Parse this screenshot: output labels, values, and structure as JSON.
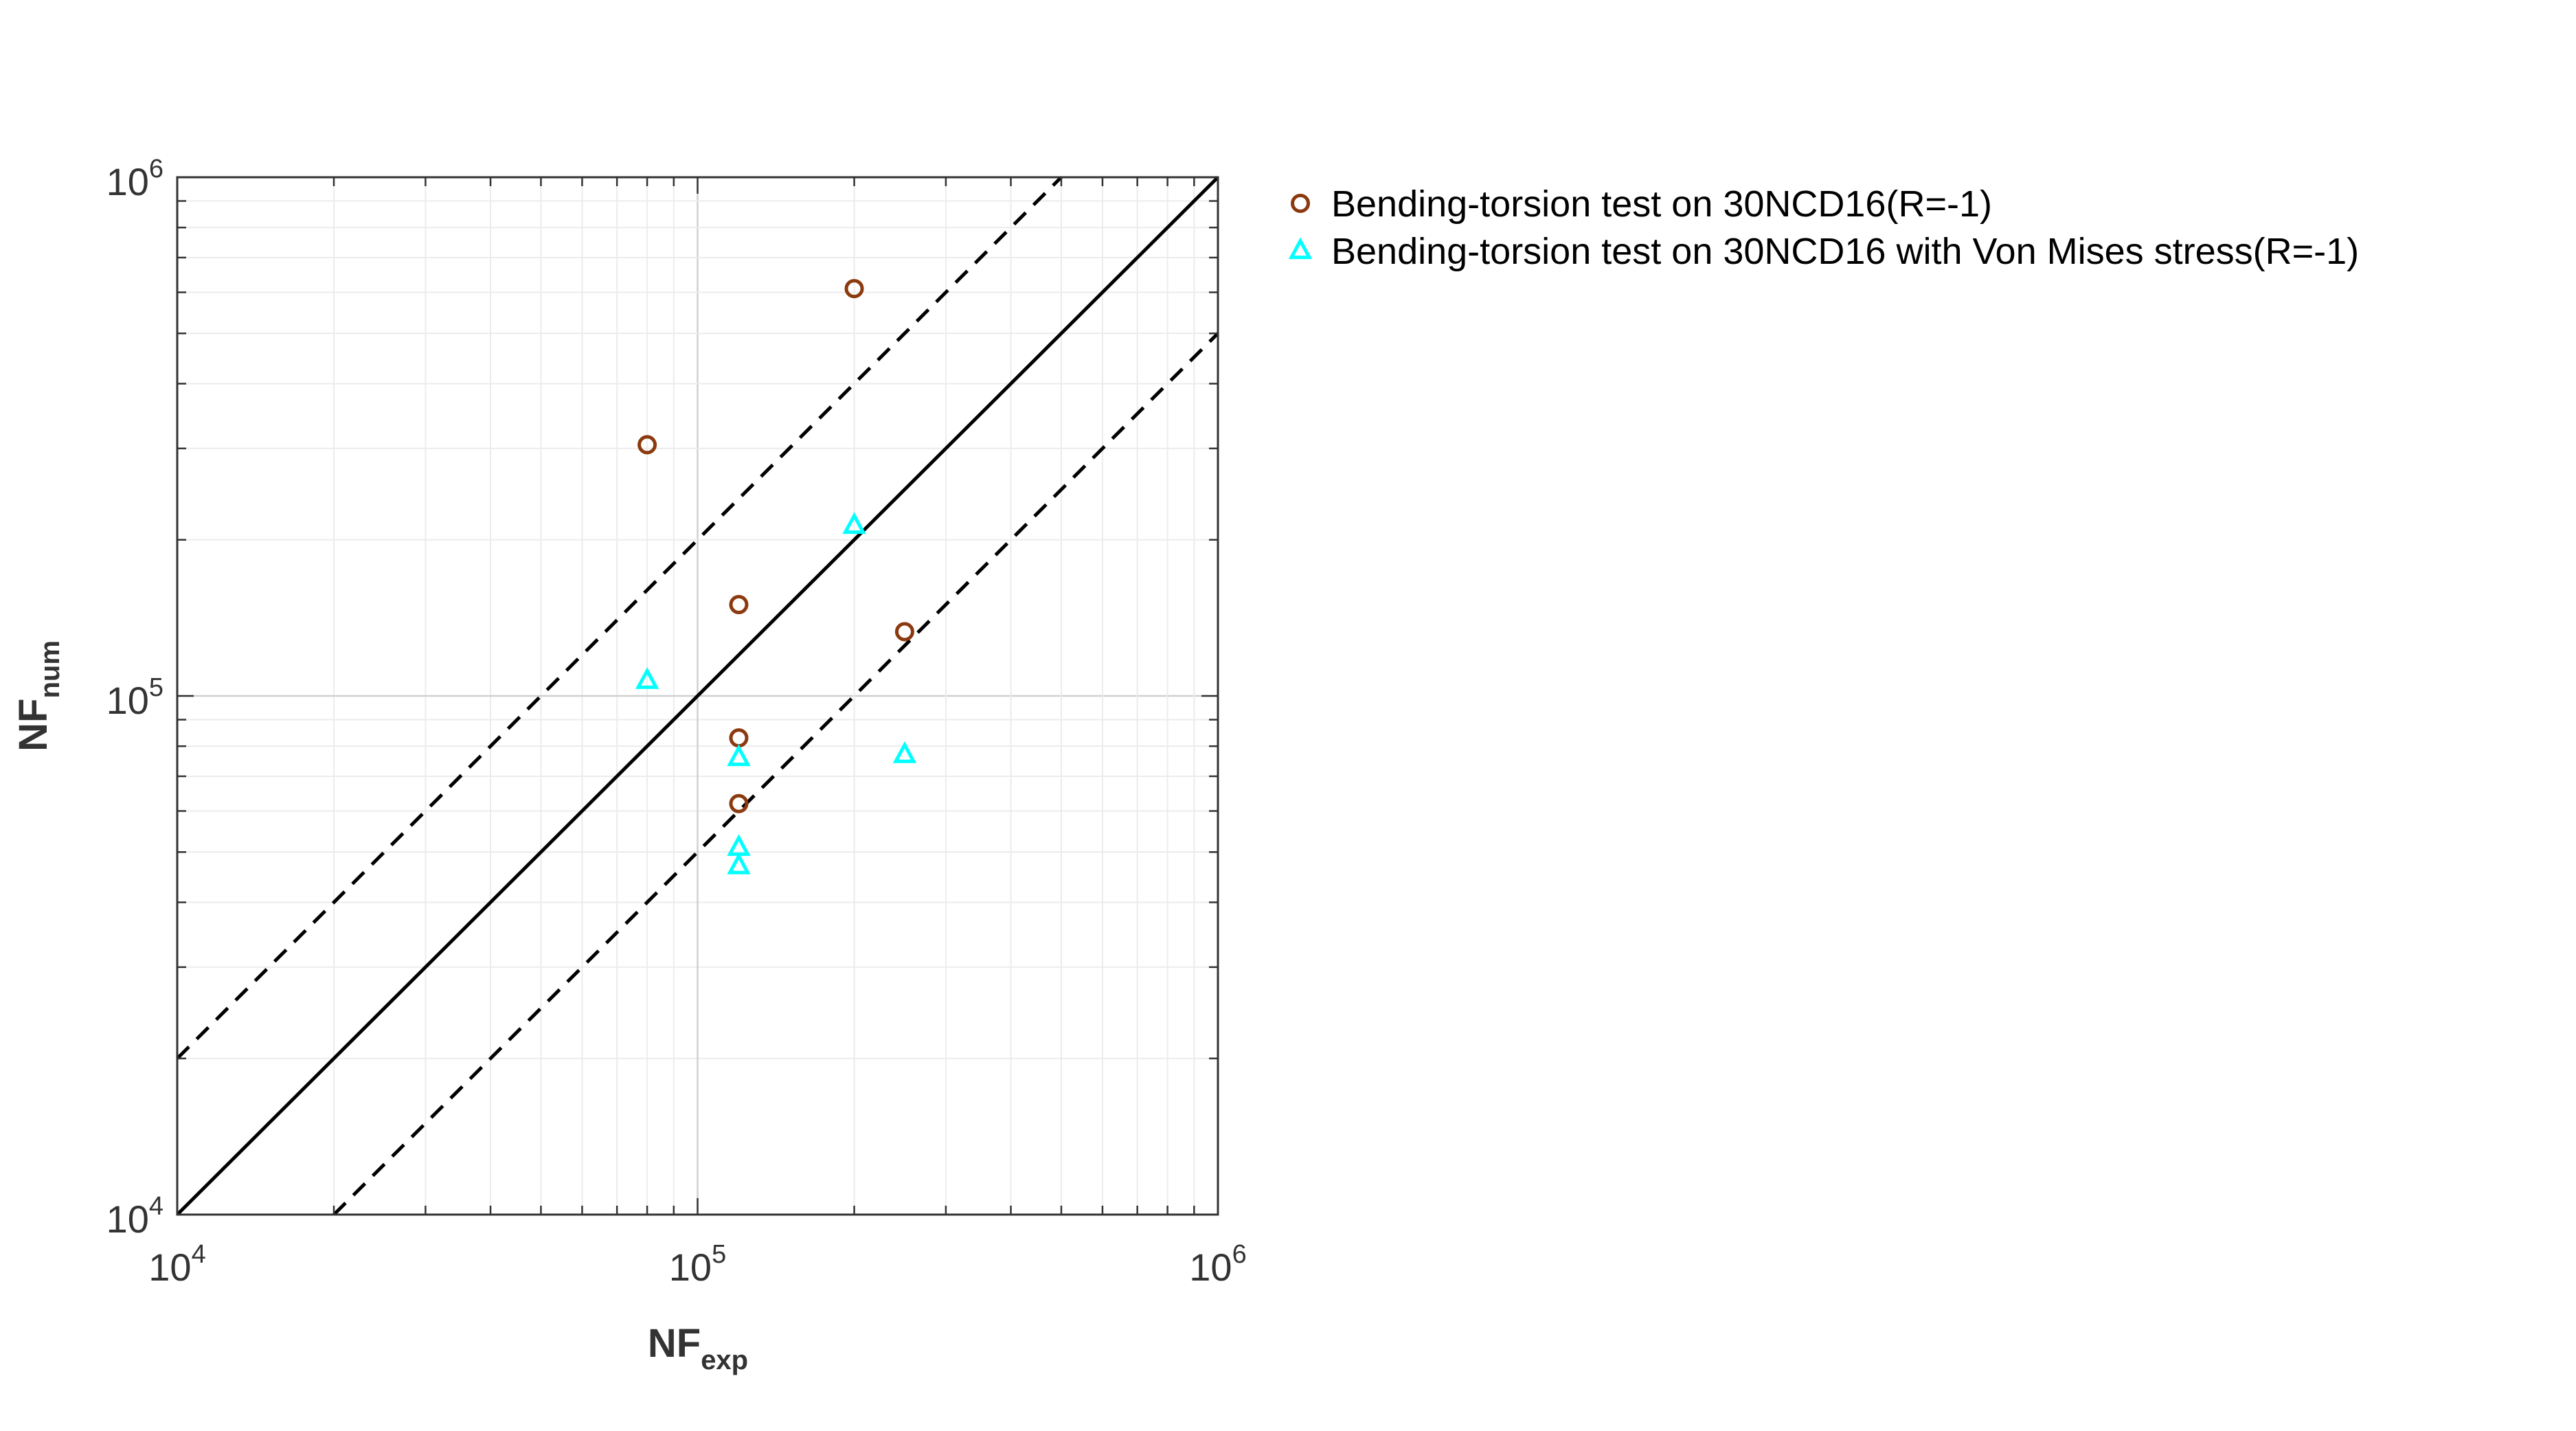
{
  "chart_data": {
    "type": "scatter",
    "xlabel": {
      "main": "NF",
      "sub": "exp"
    },
    "ylabel": {
      "main": "NF",
      "sub": "num"
    },
    "xscale": "log",
    "yscale": "log",
    "xlim": [
      10000,
      1000000
    ],
    "ylim": [
      10000,
      1000000
    ],
    "grid": true,
    "legend_position": "outside-top-right",
    "x_ticks": [
      {
        "value": 10000,
        "base": "10",
        "exp": "4"
      },
      {
        "value": 100000,
        "base": "10",
        "exp": "5"
      },
      {
        "value": 1000000,
        "base": "10",
        "exp": "6"
      }
    ],
    "y_ticks": [
      {
        "value": 10000,
        "base": "10",
        "exp": "4"
      },
      {
        "value": 100000,
        "base": "10",
        "exp": "5"
      },
      {
        "value": 1000000,
        "base": "10",
        "exp": "6"
      }
    ],
    "reference_lines": [
      {
        "style": "solid",
        "color": "#000000",
        "points": [
          [
            10000,
            10000
          ],
          [
            1000000,
            1000000
          ]
        ]
      },
      {
        "style": "dashed",
        "color": "#000000",
        "points": [
          [
            10000,
            20000
          ],
          [
            500000,
            1000000
          ]
        ]
      },
      {
        "style": "dashed",
        "color": "#000000",
        "points": [
          [
            20000,
            10000
          ],
          [
            1000000,
            500000
          ]
        ]
      }
    ],
    "series": [
      {
        "name": "Bending-torsion test on 30NCD16(R=-1)",
        "marker": "circle",
        "color": "#8B3A0F",
        "points": [
          [
            80000,
            305000
          ],
          [
            120000,
            150000
          ],
          [
            120000,
            83000
          ],
          [
            120000,
            62000
          ],
          [
            200000,
            610000
          ],
          [
            250000,
            133000
          ]
        ]
      },
      {
        "name": "Bending-torsion test on 30NCD16 with Von Mises stress(R=-1)",
        "marker": "triangle",
        "color": "#00FFFF",
        "points": [
          [
            80000,
            107000
          ],
          [
            120000,
            76000
          ],
          [
            120000,
            51000
          ],
          [
            120000,
            47000
          ],
          [
            200000,
            213000
          ],
          [
            250000,
            77000
          ]
        ]
      }
    ]
  }
}
